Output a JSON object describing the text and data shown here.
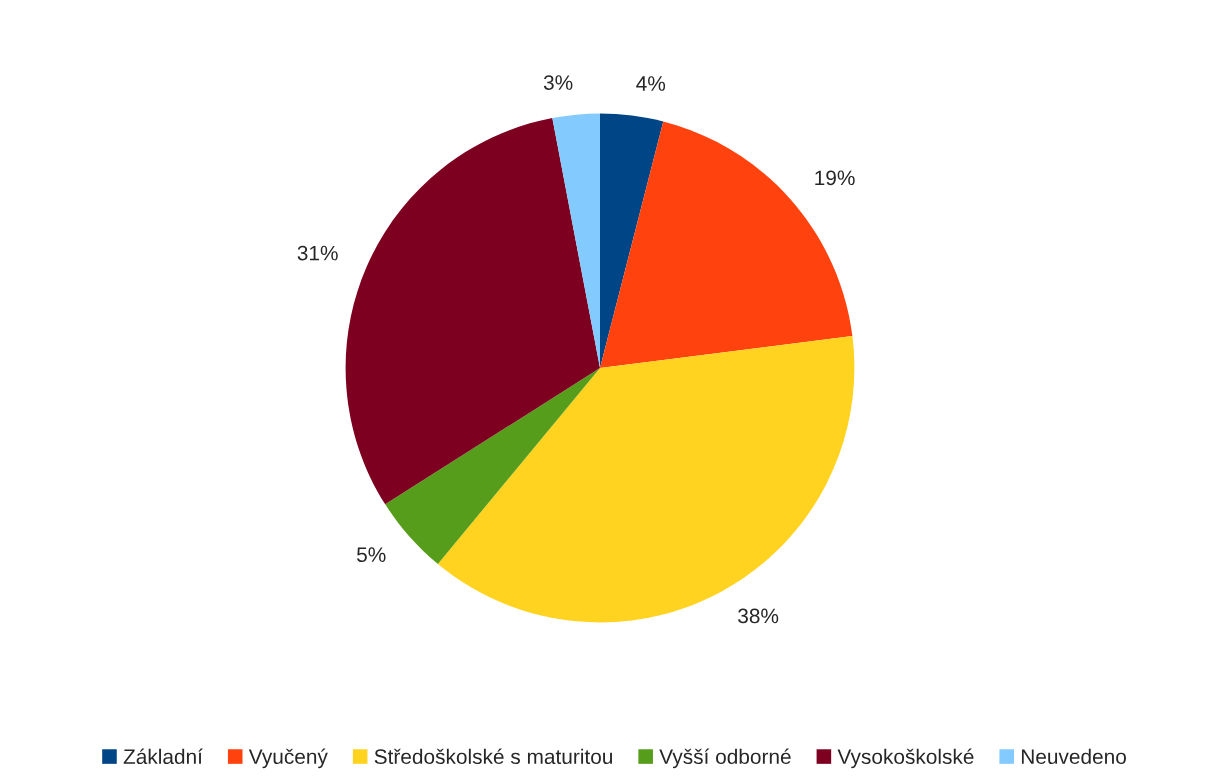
{
  "chart_data": {
    "type": "pie",
    "categories": [
      "Základní",
      "Vyučený",
      "Středoškolské s maturitou",
      "Vyšší odborné",
      "Vysokoškolské",
      "Neuvedeno"
    ],
    "values": [
      4,
      19,
      38,
      5,
      31,
      3
    ],
    "value_labels": [
      "4%",
      "19%",
      "38%",
      "5%",
      "31%",
      "3%"
    ],
    "colors": [
      "#004586",
      "#ff420e",
      "#ffd320",
      "#579d1c",
      "#7e0021",
      "#83caff"
    ],
    "legend": "bottom"
  }
}
